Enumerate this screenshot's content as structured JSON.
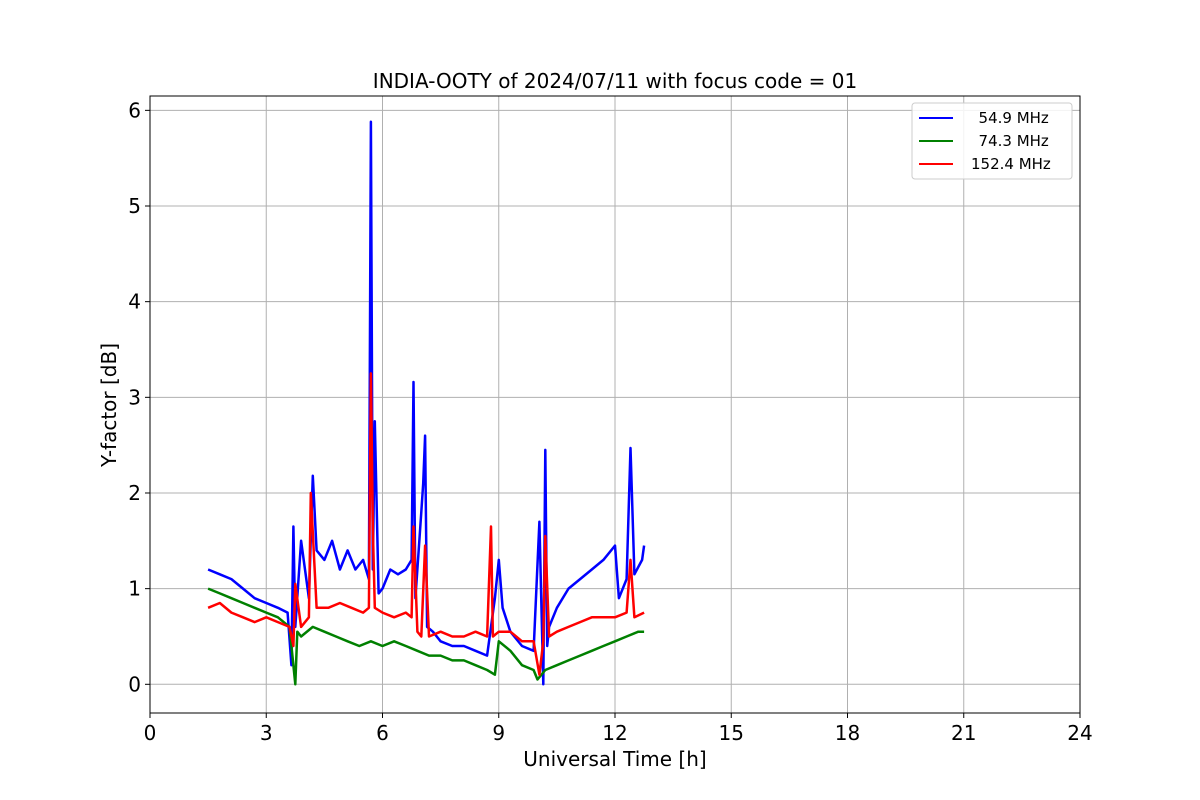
{
  "chart_data": {
    "type": "line",
    "title": "INDIA-OOTY of 2024/07/11 with focus code = 01",
    "xlabel": "Universal Time [h]",
    "ylabel": "Y-factor [dB]",
    "xlim": [
      0,
      24
    ],
    "ylim": [
      -0.3,
      6.15
    ],
    "xticks": [
      0,
      3,
      6,
      9,
      12,
      15,
      18,
      21,
      24
    ],
    "yticks": [
      0,
      1,
      2,
      3,
      4,
      5,
      6
    ],
    "grid": true,
    "legend_position": "upper right",
    "series": [
      {
        "name": "  54.9 MHz",
        "color": "#0000ff",
        "x": [
          1.5,
          1.8,
          2.1,
          2.4,
          2.7,
          3.0,
          3.3,
          3.55,
          3.65,
          3.7,
          3.75,
          3.9,
          4.1,
          4.2,
          4.3,
          4.5,
          4.7,
          4.9,
          5.1,
          5.3,
          5.5,
          5.65,
          5.7,
          5.75,
          5.8,
          5.9,
          6.0,
          6.2,
          6.4,
          6.6,
          6.75,
          6.8,
          6.85,
          7.0,
          7.05,
          7.1,
          7.15,
          7.3,
          7.5,
          7.8,
          8.1,
          8.4,
          8.7,
          8.9,
          9.0,
          9.1,
          9.3,
          9.6,
          9.9,
          10.05,
          10.15,
          10.2,
          10.25,
          10.3,
          10.5,
          10.8,
          11.1,
          11.4,
          11.7,
          12.0,
          12.1,
          12.3,
          12.4,
          12.5,
          12.7,
          12.75
        ],
        "y": [
          1.2,
          1.15,
          1.1,
          1.0,
          0.9,
          0.85,
          0.8,
          0.75,
          0.2,
          1.65,
          0.6,
          1.5,
          0.9,
          2.18,
          1.4,
          1.3,
          1.5,
          1.2,
          1.4,
          1.2,
          1.3,
          1.1,
          5.88,
          1.2,
          2.75,
          0.95,
          1.0,
          1.2,
          1.15,
          1.2,
          1.3,
          3.16,
          0.9,
          1.8,
          2.1,
          2.6,
          0.6,
          0.55,
          0.45,
          0.4,
          0.4,
          0.35,
          0.3,
          0.9,
          1.3,
          0.8,
          0.55,
          0.4,
          0.35,
          1.7,
          0.0,
          2.45,
          0.4,
          0.6,
          0.8,
          1.0,
          1.1,
          1.2,
          1.3,
          1.45,
          0.9,
          1.1,
          2.47,
          1.15,
          1.3,
          1.45
        ]
      },
      {
        "name": "  74.3 MHz",
        "color": "#008000",
        "x": [
          1.5,
          1.8,
          2.1,
          2.4,
          2.7,
          3.0,
          3.3,
          3.6,
          3.75,
          3.8,
          3.9,
          4.2,
          4.5,
          4.8,
          5.1,
          5.4,
          5.7,
          6.0,
          6.3,
          6.6,
          6.9,
          7.2,
          7.5,
          7.8,
          8.1,
          8.4,
          8.7,
          8.9,
          9.0,
          9.3,
          9.6,
          9.9,
          10.0,
          10.2,
          10.5,
          10.8,
          11.1,
          11.4,
          11.7,
          12.0,
          12.3,
          12.6,
          12.75
        ],
        "y": [
          1.0,
          0.95,
          0.9,
          0.85,
          0.8,
          0.75,
          0.7,
          0.6,
          0.0,
          0.55,
          0.5,
          0.6,
          0.55,
          0.5,
          0.45,
          0.4,
          0.45,
          0.4,
          0.45,
          0.4,
          0.35,
          0.3,
          0.3,
          0.25,
          0.25,
          0.2,
          0.15,
          0.1,
          0.45,
          0.35,
          0.2,
          0.15,
          0.05,
          0.15,
          0.2,
          0.25,
          0.3,
          0.35,
          0.4,
          0.45,
          0.5,
          0.55,
          0.55
        ]
      },
      {
        "name": "152.4 MHz",
        "color": "#ff0000",
        "x": [
          1.5,
          1.8,
          2.1,
          2.4,
          2.7,
          3.0,
          3.3,
          3.6,
          3.7,
          3.75,
          3.9,
          4.1,
          4.15,
          4.3,
          4.6,
          4.9,
          5.2,
          5.5,
          5.65,
          5.7,
          5.75,
          5.8,
          6.0,
          6.3,
          6.6,
          6.75,
          6.8,
          6.9,
          7.0,
          7.1,
          7.2,
          7.5,
          7.8,
          8.1,
          8.4,
          8.7,
          8.8,
          8.85,
          9.0,
          9.3,
          9.6,
          9.9,
          10.05,
          10.15,
          10.2,
          10.3,
          10.5,
          10.8,
          11.1,
          11.4,
          11.7,
          12.0,
          12.3,
          12.4,
          12.5,
          12.75
        ],
        "y": [
          0.8,
          0.85,
          0.75,
          0.7,
          0.65,
          0.7,
          0.65,
          0.6,
          0.4,
          1.05,
          0.6,
          0.7,
          2.0,
          0.8,
          0.8,
          0.85,
          0.8,
          0.75,
          0.8,
          3.25,
          1.65,
          0.8,
          0.75,
          0.7,
          0.75,
          0.7,
          1.65,
          0.55,
          0.5,
          1.45,
          0.5,
          0.55,
          0.5,
          0.5,
          0.55,
          0.5,
          1.65,
          0.5,
          0.55,
          0.55,
          0.45,
          0.45,
          0.1,
          0.45,
          1.55,
          0.5,
          0.55,
          0.6,
          0.65,
          0.7,
          0.7,
          0.7,
          0.75,
          1.3,
          0.7,
          0.75
        ]
      }
    ]
  }
}
